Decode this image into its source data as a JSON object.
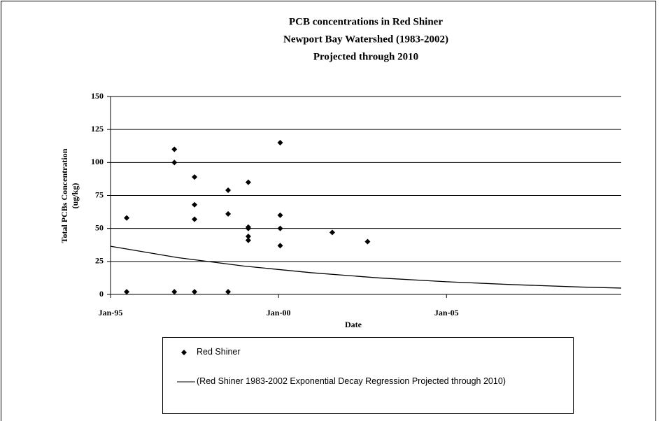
{
  "chart_data": {
    "type": "scatter",
    "title": "PCB concentrations in Red Shiner",
    "subtitle": [
      "Newport Bay Watershed (1983-2002)",
      "Projected through 2010"
    ],
    "xlabel": "Date",
    "ylabel": [
      "Total PCBs Concentration",
      "(ug/kg)"
    ],
    "xlim": [
      1995,
      2010.2
    ],
    "xticks": [
      {
        "value": 1995,
        "label": "Jan-95"
      },
      {
        "value": 2000,
        "label": "Jan-00"
      },
      {
        "value": 2005,
        "label": "Jan-05"
      }
    ],
    "ylim": [
      0,
      150
    ],
    "yticks": [
      0,
      25,
      50,
      75,
      100,
      125,
      150
    ],
    "grid": true,
    "series": [
      {
        "name": "Red Shiner",
        "type": "scatter",
        "color": "#000000",
        "x": [
          1995.48,
          1995.48,
          1996.9,
          1996.9,
          1996.9,
          1997.5,
          1997.5,
          1997.5,
          1997.5,
          1998.5,
          1998.5,
          1998.5,
          1999.1,
          1999.1,
          1999.1,
          1999.1,
          1999.1,
          2000.05,
          2000.05,
          2000.05,
          2000.05,
          2001.6,
          2002.65
        ],
        "values": [
          58,
          2,
          110,
          100,
          2,
          89,
          68,
          57,
          2,
          79,
          61,
          2,
          85,
          51,
          50,
          44,
          41,
          115,
          60,
          50,
          37,
          47,
          40
        ]
      },
      {
        "name": "(Red Shiner 1983-2002 Exponential Decay Regression  Projected through 2010)",
        "type": "line",
        "color": "#000000",
        "x": [
          1995,
          1997,
          1999,
          2001,
          2003,
          2005,
          2007,
          2009,
          2010.2
        ],
        "values": [
          36.5,
          27.9,
          21.4,
          16.4,
          12.5,
          9.6,
          7.4,
          5.6,
          4.8
        ]
      }
    ]
  }
}
